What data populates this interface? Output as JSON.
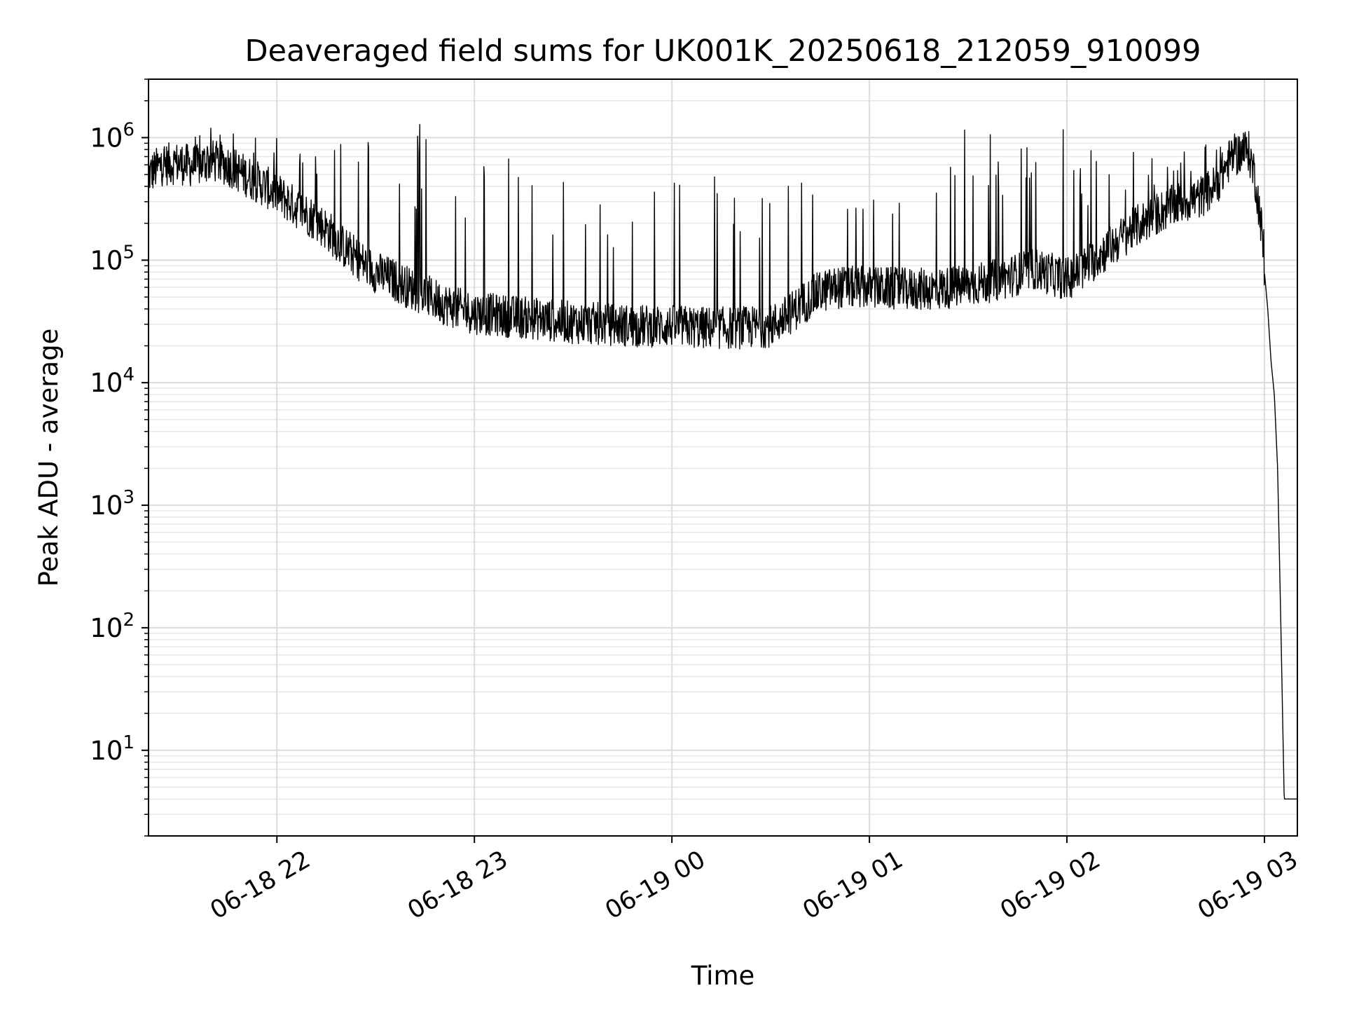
{
  "chart_data": {
    "type": "line",
    "title": "Deaveraged field sums for UK001K_20250618_212059_910099",
    "xlabel": "Time",
    "ylabel": "Peak ADU - average",
    "yscale": "log",
    "ylim": [
      2,
      3000000
    ],
    "xlim": [
      "2025-06-18 21:21",
      "2025-06-19 03:10"
    ],
    "grid": true,
    "x_ticks": [
      {
        "t": "2025-06-18 22:00",
        "label": "06-18 22"
      },
      {
        "t": "2025-06-18 23:00",
        "label": "06-18 23"
      },
      {
        "t": "2025-06-19 00:00",
        "label": "06-19 00"
      },
      {
        "t": "2025-06-19 01:00",
        "label": "06-19 01"
      },
      {
        "t": "2025-06-19 02:00",
        "label": "06-19 02"
      },
      {
        "t": "2025-06-19 03:00",
        "label": "06-19 03"
      }
    ],
    "y_ticks": [
      {
        "value": 10,
        "base": "10",
        "exp": "1"
      },
      {
        "value": 100,
        "base": "10",
        "exp": "2"
      },
      {
        "value": 1000,
        "base": "10",
        "exp": "3"
      },
      {
        "value": 10000,
        "base": "10",
        "exp": "4"
      },
      {
        "value": 100000,
        "base": "10",
        "exp": "5"
      },
      {
        "value": 1000000,
        "base": "10",
        "exp": "6"
      }
    ],
    "series": [
      {
        "color": "#000000",
        "points": [
          [
            "2025-06-18 21:21",
            500000
          ],
          [
            "2025-06-18 21:25",
            600000
          ],
          [
            "2025-06-18 21:30",
            620000
          ],
          [
            "2025-06-18 21:35",
            580000
          ],
          [
            "2025-06-18 21:40",
            650000
          ],
          [
            "2025-06-18 21:45",
            600000
          ],
          [
            "2025-06-18 21:50",
            500000
          ],
          [
            "2025-06-18 21:55",
            420000
          ],
          [
            "2025-06-18 22:00",
            350000
          ],
          [
            "2025-06-18 22:05",
            280000
          ],
          [
            "2025-06-18 22:10",
            230000
          ],
          [
            "2025-06-18 22:15",
            180000
          ],
          [
            "2025-06-18 22:20",
            130000
          ],
          [
            "2025-06-18 22:25",
            100000
          ],
          [
            "2025-06-18 22:30",
            80000
          ],
          [
            "2025-06-18 22:35",
            70000
          ],
          [
            "2025-06-18 22:40",
            60000
          ],
          [
            "2025-06-18 22:45",
            52000
          ],
          [
            "2025-06-18 22:50",
            45000
          ],
          [
            "2025-06-18 22:55",
            40000
          ],
          [
            "2025-06-18 23:00",
            37000
          ],
          [
            "2025-06-18 23:10",
            35000
          ],
          [
            "2025-06-18 23:20",
            33000
          ],
          [
            "2025-06-18 23:30",
            31000
          ],
          [
            "2025-06-18 23:40",
            30000
          ],
          [
            "2025-06-18 23:50",
            29000
          ],
          [
            "2025-06-19 00:00",
            29000
          ],
          [
            "2025-06-19 00:10",
            28000
          ],
          [
            "2025-06-19 00:20",
            28000
          ],
          [
            "2025-06-19 00:30",
            29000
          ],
          [
            "2025-06-19 00:35",
            35000
          ],
          [
            "2025-06-19 00:40",
            45000
          ],
          [
            "2025-06-19 00:45",
            55000
          ],
          [
            "2025-06-19 00:50",
            60000
          ],
          [
            "2025-06-19 01:00",
            60000
          ],
          [
            "2025-06-19 01:10",
            58000
          ],
          [
            "2025-06-19 01:20",
            58000
          ],
          [
            "2025-06-19 01:30",
            62000
          ],
          [
            "2025-06-19 01:40",
            70000
          ],
          [
            "2025-06-19 01:50",
            85000
          ],
          [
            "2025-06-19 02:00",
            70000
          ],
          [
            "2025-06-19 02:05",
            85000
          ],
          [
            "2025-06-19 02:10",
            110000
          ],
          [
            "2025-06-19 02:15",
            140000
          ],
          [
            "2025-06-19 02:20",
            180000
          ],
          [
            "2025-06-19 02:25",
            220000
          ],
          [
            "2025-06-19 02:30",
            260000
          ],
          [
            "2025-06-19 02:35",
            300000
          ],
          [
            "2025-06-19 02:40",
            320000
          ],
          [
            "2025-06-19 02:45",
            400000
          ],
          [
            "2025-06-19 02:50",
            700000
          ],
          [
            "2025-06-19 02:55",
            800000
          ],
          [
            "2025-06-19 02:57",
            500000
          ],
          [
            "2025-06-19 02:59",
            200000
          ],
          [
            "2025-06-19 03:00",
            80000
          ],
          [
            "2025-06-19 03:01",
            40000
          ],
          [
            "2025-06-19 03:02",
            15000
          ],
          [
            "2025-06-19 03:03",
            8000
          ],
          [
            "2025-06-19 03:04",
            2000
          ],
          [
            "2025-06-19 03:05",
            100
          ],
          [
            "2025-06-19 03:06",
            4
          ],
          [
            "2025-06-19 03:10",
            4
          ]
        ],
        "spike_envelope": [
          [
            "2025-06-18 21:21",
            800000
          ],
          [
            "2025-06-18 21:40",
            1200000
          ],
          [
            "2025-06-18 22:00",
            1000000
          ],
          [
            "2025-06-18 22:30",
            1000000
          ],
          [
            "2025-06-18 22:45",
            1500000
          ],
          [
            "2025-06-18 23:00",
            900000
          ],
          [
            "2025-06-18 23:30",
            700000
          ],
          [
            "2025-06-18 23:50",
            500000
          ],
          [
            "2025-06-19 00:10",
            500000
          ],
          [
            "2025-06-19 00:30",
            550000
          ],
          [
            "2025-06-19 01:00",
            350000
          ],
          [
            "2025-06-19 01:30",
            1300000
          ],
          [
            "2025-06-19 02:00",
            1200000
          ],
          [
            "2025-06-19 02:30",
            700000
          ],
          [
            "2025-06-19 02:55",
            1100000
          ],
          [
            "2025-06-19 03:00",
            200000
          ]
        ]
      }
    ]
  }
}
